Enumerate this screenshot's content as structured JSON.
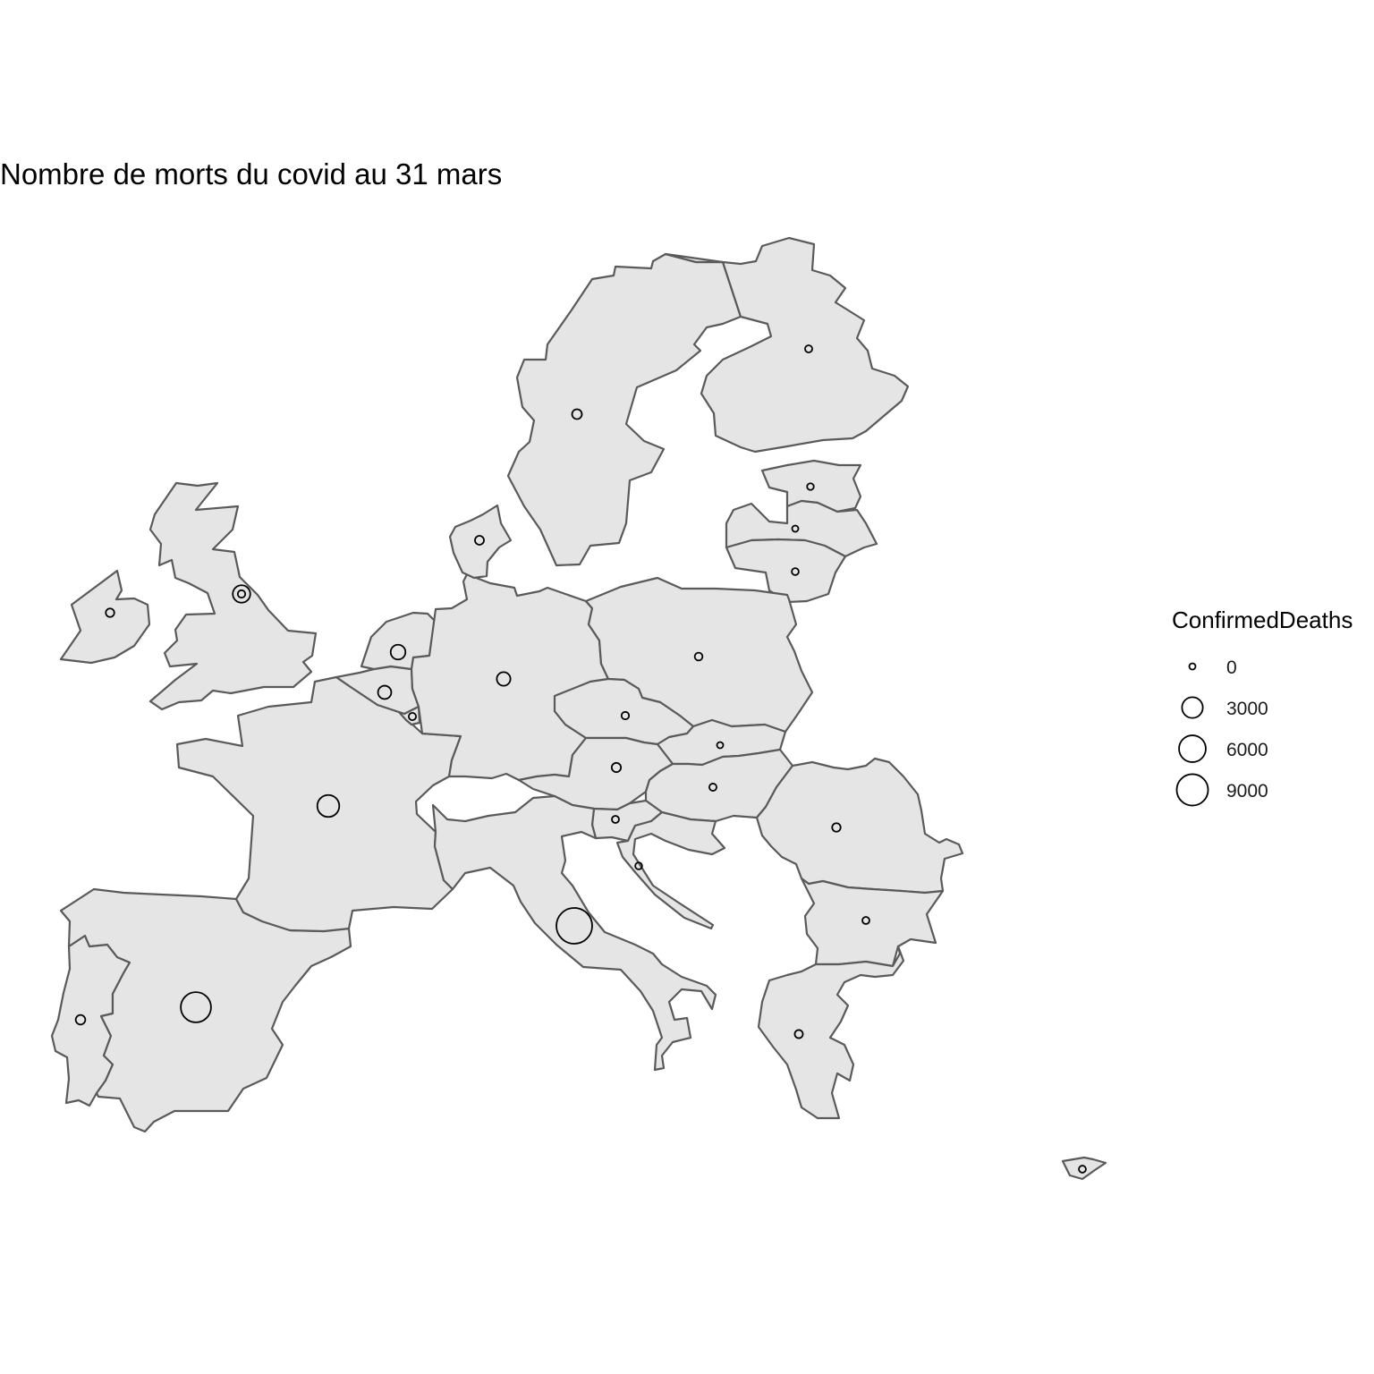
{
  "map": {
    "title": "Nombre de morts du covid au 31 mars",
    "colors": {
      "land": "#e5e5e5",
      "border": "#5a5a5a",
      "bubble": "#000000",
      "background": "#ffffff"
    },
    "countries": [
      {
        "id": "ireland",
        "confirmed_deaths": 71
      },
      {
        "id": "united-kingdom",
        "confirmed_deaths": 1793
      },
      {
        "id": "portugal",
        "confirmed_deaths": 160
      },
      {
        "id": "spain",
        "confirmed_deaths": 8189
      },
      {
        "id": "france",
        "confirmed_deaths": 3523
      },
      {
        "id": "belgium",
        "confirmed_deaths": 705
      },
      {
        "id": "netherlands",
        "confirmed_deaths": 1039
      },
      {
        "id": "luxembourg",
        "confirmed_deaths": 16
      },
      {
        "id": "germany",
        "confirmed_deaths": 775
      },
      {
        "id": "denmark",
        "confirmed_deaths": 104
      },
      {
        "id": "sweden",
        "confirmed_deaths": 180
      },
      {
        "id": "finland",
        "confirmed_deaths": 13
      },
      {
        "id": "estonia",
        "confirmed_deaths": 3
      },
      {
        "id": "latvia",
        "confirmed_deaths": 0
      },
      {
        "id": "lithuania",
        "confirmed_deaths": 7
      },
      {
        "id": "poland",
        "confirmed_deaths": 33
      },
      {
        "id": "czechia",
        "confirmed_deaths": 23
      },
      {
        "id": "slovakia",
        "confirmed_deaths": 0
      },
      {
        "id": "austria",
        "confirmed_deaths": 128
      },
      {
        "id": "hungary",
        "confirmed_deaths": 15
      },
      {
        "id": "slovenia",
        "confirmed_deaths": 11
      },
      {
        "id": "croatia",
        "confirmed_deaths": 6
      },
      {
        "id": "italy",
        "confirmed_deaths": 12428
      },
      {
        "id": "romania",
        "confirmed_deaths": 69
      },
      {
        "id": "bulgaria",
        "confirmed_deaths": 10
      },
      {
        "id": "greece",
        "confirmed_deaths": 49
      },
      {
        "id": "cyprus",
        "confirmed_deaths": 9
      }
    ]
  },
  "legend": {
    "title": "ConfirmedDeaths",
    "entries": [
      {
        "value": 0,
        "label": "0"
      },
      {
        "value": 3000,
        "label": "3000"
      },
      {
        "value": 6000,
        "label": "6000"
      },
      {
        "value": 9000,
        "label": "9000"
      }
    ]
  }
}
